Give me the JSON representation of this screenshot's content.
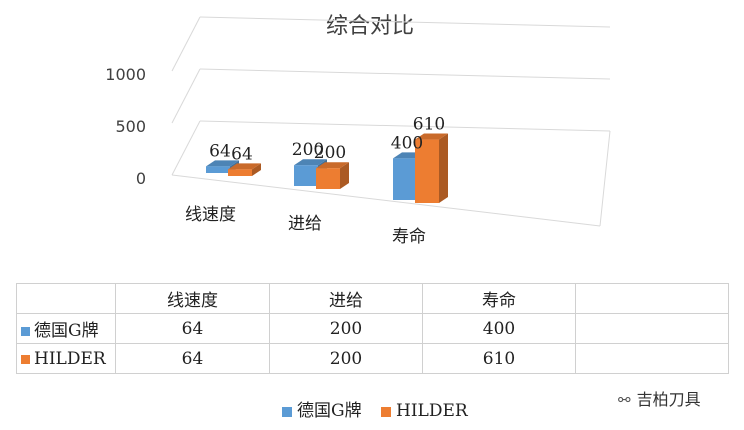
{
  "chart_data": {
    "type": "bar",
    "title": "综合对比",
    "categories": [
      "线速度",
      "进给",
      "寿命"
    ],
    "series": [
      {
        "name": "德国G牌",
        "values": [
          64,
          200,
          400
        ],
        "color": "#5B9BD5"
      },
      {
        "name": "HILDER",
        "values": [
          64,
          200,
          610
        ],
        "color": "#ED7D31"
      }
    ],
    "y_ticks": [
      "1000",
      "500",
      "0"
    ],
    "ylim": [
      0,
      1000
    ],
    "data_labels": [
      [
        "64",
        "200",
        "400"
      ],
      [
        "64",
        "200",
        "610"
      ]
    ],
    "legend_position": "bottom",
    "style": "3d-clustered-column"
  },
  "table": {
    "headers": [
      "线速度",
      "进给",
      "寿命"
    ],
    "rows": [
      {
        "name": "德国G牌",
        "values": [
          "64",
          "200",
          "400"
        ],
        "color": "#5B9BD5"
      },
      {
        "name": "HILDER",
        "values": [
          "64",
          "200",
          "610"
        ],
        "color": "#ED7D31"
      }
    ]
  },
  "watermark": {
    "text": "吉柏刀具",
    "icon": "wechat-icon"
  }
}
